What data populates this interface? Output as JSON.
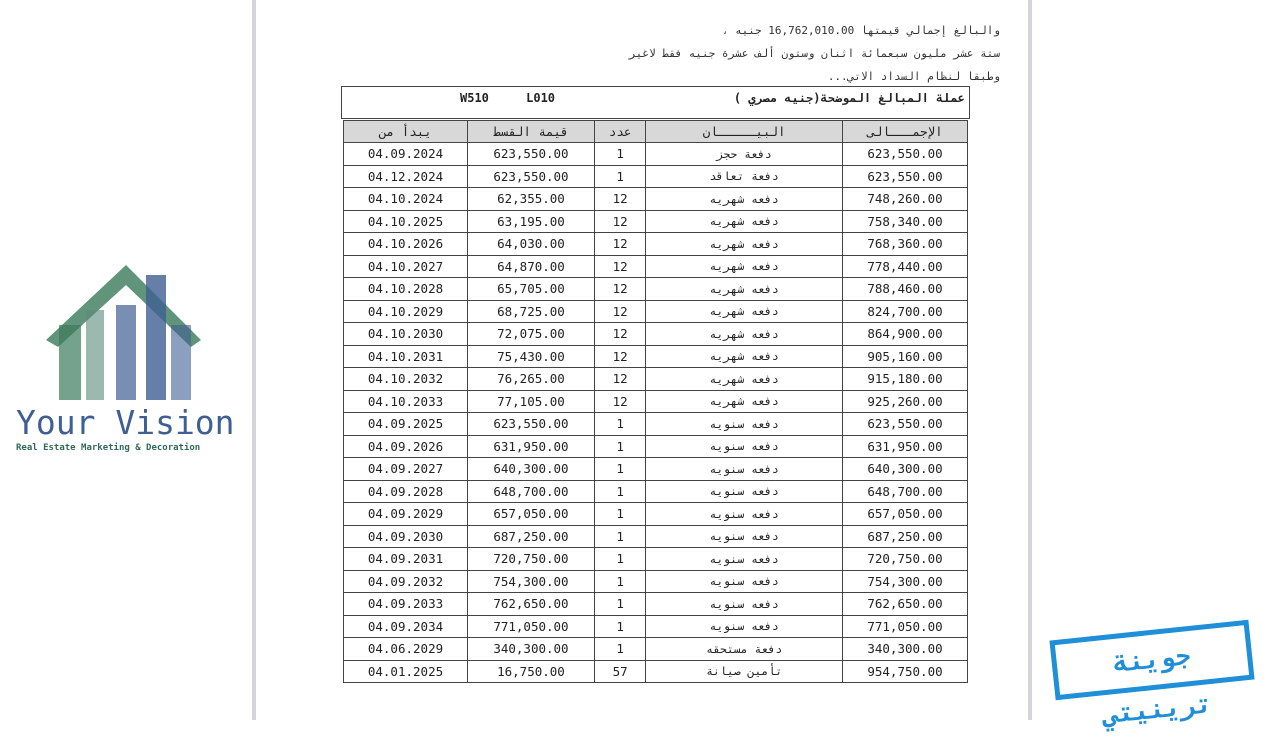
{
  "intro": {
    "line1": "والبالغ إجمالي قيمتها  16,762,010.00  جنيه ،",
    "line2": "ستة عشر مليون سبعمائة اثنان وستون ألف عشرة   جنيه فقط لاغير",
    "line3": "وطبقا لنظام السداد الاتي..."
  },
  "title_box": {
    "currency": "عملة المبالغ الموضحة(جنيه مصري )",
    "codes": "W510 L010"
  },
  "table": {
    "headers": {
      "total": "الإجمـــالى",
      "description": "البيـــــان",
      "count": "عدد",
      "installment": "قيمة القسط",
      "start": "يبدأ من"
    },
    "rows": [
      [
        "04.09.2024",
        "623,550.00",
        "1",
        "دفعة حجز",
        "623,550.00"
      ],
      [
        "04.12.2024",
        "623,550.00",
        "1",
        "دفعة تعاقد",
        "623,550.00"
      ],
      [
        "04.10.2024",
        "62,355.00",
        "12",
        "دفعه شهريه",
        "748,260.00"
      ],
      [
        "04.10.2025",
        "63,195.00",
        "12",
        "دفعه شهريه",
        "758,340.00"
      ],
      [
        "04.10.2026",
        "64,030.00",
        "12",
        "دفعه شهريه",
        "768,360.00"
      ],
      [
        "04.10.2027",
        "64,870.00",
        "12",
        "دفعه شهريه",
        "778,440.00"
      ],
      [
        "04.10.2028",
        "65,705.00",
        "12",
        "دفعه شهريه",
        "788,460.00"
      ],
      [
        "04.10.2029",
        "68,725.00",
        "12",
        "دفعه شهريه",
        "824,700.00"
      ],
      [
        "04.10.2030",
        "72,075.00",
        "12",
        "دفعه شهريه",
        "864,900.00"
      ],
      [
        "04.10.2031",
        "75,430.00",
        "12",
        "دفعه شهريه",
        "905,160.00"
      ],
      [
        "04.10.2032",
        "76,265.00",
        "12",
        "دفعه شهريه",
        "915,180.00"
      ],
      [
        "04.10.2033",
        "77,105.00",
        "12",
        "دفعه شهريه",
        "925,260.00"
      ],
      [
        "04.09.2025",
        "623,550.00",
        "1",
        "دفعه سنويه",
        "623,550.00"
      ],
      [
        "04.09.2026",
        "631,950.00",
        "1",
        "دفعه سنويه",
        "631,950.00"
      ],
      [
        "04.09.2027",
        "640,300.00",
        "1",
        "دفعه سنويه",
        "640,300.00"
      ],
      [
        "04.09.2028",
        "648,700.00",
        "1",
        "دفعه سنويه",
        "648,700.00"
      ],
      [
        "04.09.2029",
        "657,050.00",
        "1",
        "دفعه سنويه",
        "657,050.00"
      ],
      [
        "04.09.2030",
        "687,250.00",
        "1",
        "دفعه سنويه",
        "687,250.00"
      ],
      [
        "04.09.2031",
        "720,750.00",
        "1",
        "دفعه سنويه",
        "720,750.00"
      ],
      [
        "04.09.2032",
        "754,300.00",
        "1",
        "دفعه سنويه",
        "754,300.00"
      ],
      [
        "04.09.2033",
        "762,650.00",
        "1",
        "دفعه سنويه",
        "762,650.00"
      ],
      [
        "04.09.2034",
        "771,050.00",
        "1",
        "دفعه سنويه",
        "771,050.00"
      ],
      [
        "04.06.2029",
        "340,300.00",
        "1",
        "دفعة مستحقه",
        "340,300.00"
      ],
      [
        "04.01.2025",
        "16,750.00",
        "57",
        "تأمين صيانة",
        "954,750.00"
      ]
    ]
  },
  "watermark": {
    "name": "Your Vision",
    "tagline": "Real Estate Marketing & Decoration"
  },
  "stamp": {
    "text": "جوينة ترينيتي"
  }
}
